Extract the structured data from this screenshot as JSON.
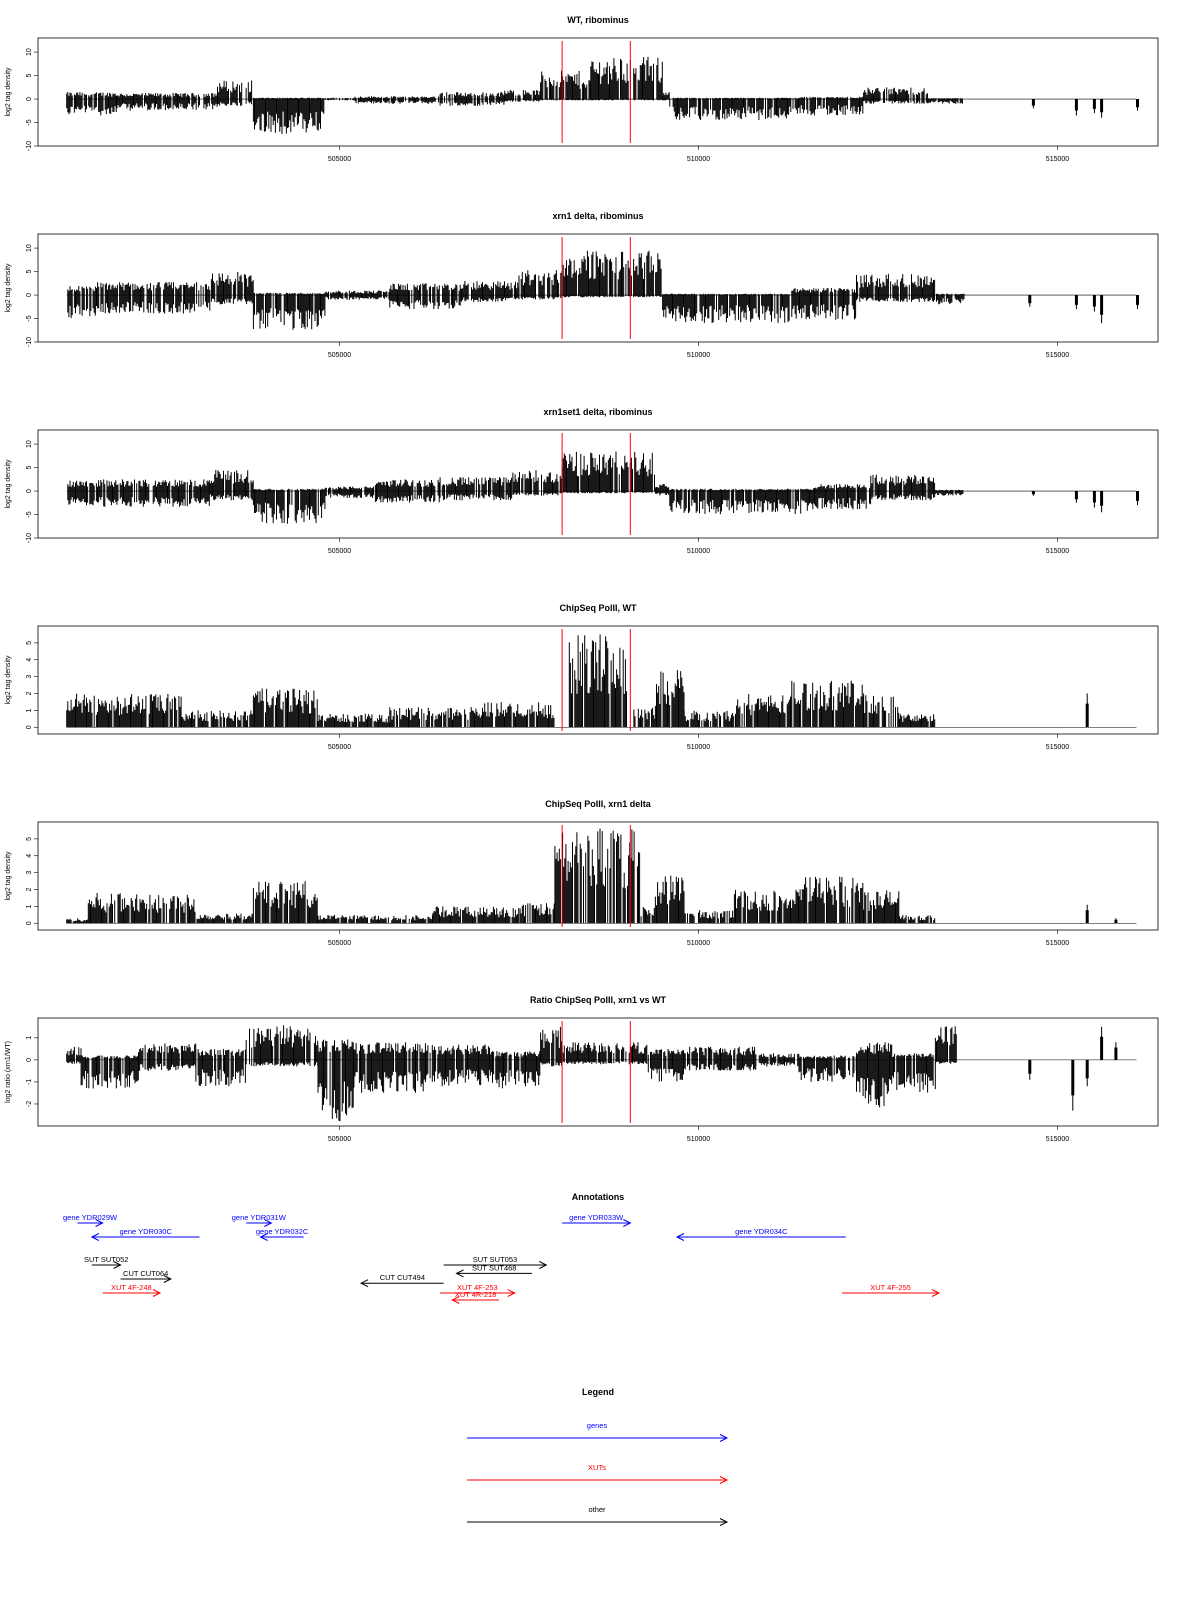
{
  "colors": {
    "gene": "#0000ff",
    "xut": "#ff0000",
    "other": "#000000",
    "marker": "#ff0000",
    "bars": "#000000"
  },
  "chart_data": [
    {
      "type": "bar",
      "title": "WT, ribominus",
      "ylabel": "log2 tag density",
      "xlim": [
        500800,
        516400
      ],
      "ylim": [
        -10,
        13
      ],
      "yticks": [
        "10",
        "5",
        "0",
        "-5",
        "-10"
      ],
      "xticks": [
        {
          "value": 505000,
          "label": "505000"
        },
        {
          "value": 510000,
          "label": "510000"
        },
        {
          "value": 515000,
          "label": "515000"
        }
      ],
      "markers": [
        508100,
        509050
      ],
      "segments": [
        [
          501200,
          501900,
          -3.5,
          1.5
        ],
        [
          501900,
          503300,
          -2.5,
          1.3
        ],
        [
          503300,
          503800,
          -1.5,
          4.0
        ],
        [
          503800,
          504800,
          -7.5,
          0.3
        ],
        [
          504800,
          505200,
          -0.3,
          0.3
        ],
        [
          505200,
          506400,
          -1.0,
          0.6
        ],
        [
          506400,
          507300,
          -1.5,
          1.5
        ],
        [
          507300,
          507800,
          -0.6,
          2.0
        ],
        [
          507800,
          508500,
          -0.3,
          6.0
        ],
        [
          508500,
          509500,
          -0.3,
          9.0
        ],
        [
          509500,
          509600,
          -0.3,
          2.0
        ],
        [
          509600,
          511400,
          -4.5,
          0.3
        ],
        [
          511400,
          512300,
          -3.5,
          0.5
        ],
        [
          512300,
          513200,
          -1.0,
          2.5
        ],
        [
          513200,
          513700,
          -1.0,
          0.2
        ]
      ],
      "spikes": [
        [
          514650,
          -2.0
        ],
        [
          515250,
          -3.5
        ],
        [
          515500,
          -3.0
        ],
        [
          515600,
          -4.0
        ],
        [
          516100,
          -2.5
        ]
      ]
    },
    {
      "type": "bar",
      "title": "xrn1 delta, ribominus",
      "ylabel": "log2 tag density",
      "xlim": [
        500800,
        516400
      ],
      "ylim": [
        -10,
        13
      ],
      "yticks": [
        "10",
        "5",
        "0",
        "-5",
        "-10"
      ],
      "xticks": [
        {
          "value": 505000,
          "label": "505000"
        },
        {
          "value": 510000,
          "label": "510000"
        },
        {
          "value": 515000,
          "label": "515000"
        }
      ],
      "markers": [
        508100,
        509050
      ],
      "segments": [
        [
          501200,
          501600,
          -5.0,
          2.0
        ],
        [
          501600,
          503200,
          -4.0,
          2.8
        ],
        [
          503200,
          503800,
          -2.0,
          5.0
        ],
        [
          503800,
          504800,
          -7.5,
          0.5
        ],
        [
          504800,
          505700,
          -1.0,
          1.0
        ],
        [
          505700,
          506700,
          -3.0,
          2.5
        ],
        [
          506700,
          507500,
          -1.5,
          3.0
        ],
        [
          507500,
          508100,
          -1.0,
          5.5
        ],
        [
          508100,
          509500,
          -0.5,
          9.5
        ],
        [
          509500,
          511300,
          -6.0,
          0.3
        ],
        [
          511300,
          512200,
          -5.5,
          1.5
        ],
        [
          512200,
          513300,
          -1.5,
          4.5
        ],
        [
          513300,
          513700,
          -2.0,
          0.3
        ]
      ],
      "spikes": [
        [
          514600,
          -2.5
        ],
        [
          515250,
          -3.0
        ],
        [
          515500,
          -3.5
        ],
        [
          515600,
          -6.0
        ],
        [
          516100,
          -3.0
        ]
      ]
    },
    {
      "type": "bar",
      "title": "xrn1set1 delta, ribominus",
      "ylabel": "log2 tag density",
      "xlim": [
        500800,
        516400
      ],
      "ylim": [
        -10,
        13
      ],
      "yticks": [
        "10",
        "5",
        "0",
        "-5",
        "-10"
      ],
      "xticks": [
        {
          "value": 505000,
          "label": "505000"
        },
        {
          "value": 510000,
          "label": "510000"
        },
        {
          "value": 515000,
          "label": "515000"
        }
      ],
      "markers": [
        508100,
        509050
      ],
      "segments": [
        [
          501200,
          501700,
          -3.5,
          2.5
        ],
        [
          501700,
          503200,
          -3.5,
          2.5
        ],
        [
          503200,
          503800,
          -2.0,
          4.5
        ],
        [
          503800,
          504800,
          -7.0,
          0.5
        ],
        [
          504800,
          505500,
          -1.5,
          1.0
        ],
        [
          505500,
          506400,
          -2.5,
          2.5
        ],
        [
          506400,
          507400,
          -2.0,
          3.0
        ],
        [
          507400,
          508100,
          -1.0,
          4.5
        ],
        [
          508100,
          509400,
          -0.5,
          8.5
        ],
        [
          509400,
          509600,
          -1.0,
          2.0
        ],
        [
          509600,
          511600,
          -5.0,
          0.5
        ],
        [
          511600,
          512400,
          -4.0,
          1.5
        ],
        [
          512400,
          513300,
          -2.0,
          3.5
        ],
        [
          513300,
          513700,
          -1.0,
          0.3
        ]
      ],
      "spikes": [
        [
          514650,
          -1.0
        ],
        [
          515250,
          -2.5
        ],
        [
          515500,
          -3.5
        ],
        [
          515600,
          -4.5
        ],
        [
          516100,
          -3.0
        ]
      ]
    },
    {
      "type": "bar",
      "title": "ChipSeq PolII, WT",
      "ylabel": "log2 tag density",
      "xlim": [
        500800,
        516400
      ],
      "ylim": [
        -0.4,
        6.0
      ],
      "yticks": [
        "5",
        "4",
        "3",
        "2",
        "1",
        "0"
      ],
      "xticks": [
        {
          "value": 505000,
          "label": "505000"
        },
        {
          "value": 510000,
          "label": "510000"
        },
        {
          "value": 515000,
          "label": "515000"
        }
      ],
      "markers": [
        508100,
        509050
      ],
      "segments": [
        [
          501200,
          502800,
          0,
          2.0
        ],
        [
          502800,
          503800,
          0,
          1.0
        ],
        [
          503800,
          504700,
          0,
          2.3
        ],
        [
          504700,
          505700,
          0,
          0.8
        ],
        [
          505700,
          506900,
          0,
          1.2
        ],
        [
          506900,
          508000,
          0,
          1.5
        ],
        [
          508200,
          509000,
          0,
          5.5
        ],
        [
          509100,
          509400,
          0,
          1.2
        ],
        [
          509400,
          509800,
          0,
          3.5
        ],
        [
          509800,
          510500,
          0,
          1.0
        ],
        [
          510500,
          511300,
          0,
          2.0
        ],
        [
          511300,
          512300,
          0,
          2.8
        ],
        [
          512300,
          512800,
          0,
          2.0
        ],
        [
          512800,
          513300,
          0,
          0.8
        ]
      ],
      "spikes": [
        [
          515400,
          2.0
        ]
      ]
    },
    {
      "type": "bar",
      "title": "ChipSeq PolII, xrn1 delta",
      "ylabel": "log2 tag density",
      "xlim": [
        500800,
        516400
      ],
      "ylim": [
        -0.4,
        6.0
      ],
      "yticks": [
        "5",
        "4",
        "3",
        "2",
        "1",
        "0"
      ],
      "xticks": [
        {
          "value": 505000,
          "label": "505000"
        },
        {
          "value": 510000,
          "label": "510000"
        },
        {
          "value": 515000,
          "label": "515000"
        }
      ],
      "markers": [
        508100,
        509050
      ],
      "segments": [
        [
          501200,
          501500,
          0,
          0.3
        ],
        [
          501500,
          503000,
          0,
          1.8
        ],
        [
          503000,
          503800,
          0,
          0.6
        ],
        [
          503800,
          504700,
          0,
          2.5
        ],
        [
          504700,
          506300,
          0,
          0.5
        ],
        [
          506300,
          507500,
          0,
          1.0
        ],
        [
          507500,
          508000,
          0,
          1.2
        ],
        [
          508000,
          509200,
          0,
          5.8
        ],
        [
          509200,
          509400,
          0,
          1.0
        ],
        [
          509400,
          509800,
          0,
          3.0
        ],
        [
          509800,
          510500,
          0,
          0.8
        ],
        [
          510500,
          511400,
          0,
          2.0
        ],
        [
          511400,
          512300,
          0,
          2.8
        ],
        [
          512300,
          512800,
          0,
          2.0
        ],
        [
          512800,
          513300,
          0,
          0.5
        ]
      ],
      "spikes": [
        [
          515400,
          1.1
        ],
        [
          515800,
          0.3
        ]
      ]
    },
    {
      "type": "bar",
      "title": "Ratio ChipSeq PolII, xrn1 vs WT",
      "ylabel": "log2 ratio (xrn1/WT)",
      "xlim": [
        500800,
        516400
      ],
      "ylim": [
        -3.0,
        1.9
      ],
      "yticks": [
        "1",
        "0",
        "-1",
        "-2"
      ],
      "xticks": [
        {
          "value": 505000,
          "label": "505000"
        },
        {
          "value": 510000,
          "label": "510000"
        },
        {
          "value": 515000,
          "label": "515000"
        }
      ],
      "markers": [
        508100,
        509050
      ],
      "segments": [
        [
          501200,
          501400,
          -0.2,
          0.6
        ],
        [
          501400,
          502200,
          -1.3,
          0.2
        ],
        [
          502200,
          503000,
          -0.5,
          0.8
        ],
        [
          503000,
          503700,
          -1.2,
          0.5
        ],
        [
          503700,
          504700,
          -0.3,
          1.6
        ],
        [
          504700,
          505200,
          -2.8,
          1.0
        ],
        [
          505200,
          506200,
          -1.5,
          0.8
        ],
        [
          506200,
          507100,
          -1.2,
          0.7
        ],
        [
          507100,
          507800,
          -1.3,
          0.4
        ],
        [
          507800,
          508100,
          -0.3,
          1.5
        ],
        [
          508100,
          509300,
          -0.2,
          0.8
        ],
        [
          509300,
          509800,
          -1.0,
          0.5
        ],
        [
          509800,
          510800,
          -0.5,
          0.6
        ],
        [
          510800,
          511400,
          -0.3,
          0.3
        ],
        [
          511400,
          512200,
          -1.0,
          0.2
        ],
        [
          512200,
          512700,
          -2.2,
          0.8
        ],
        [
          512700,
          513300,
          -1.5,
          0.3
        ],
        [
          513300,
          513600,
          -0.2,
          1.7
        ]
      ],
      "spikes": [
        [
          514600,
          -0.9
        ],
        [
          515200,
          -2.3
        ],
        [
          515400,
          -1.2
        ],
        [
          515600,
          1.5
        ],
        [
          515800,
          0.8
        ]
      ]
    }
  ],
  "annotations": {
    "title": "Annotations",
    "items": [
      {
        "label": "gene YDR029W",
        "start": 501350,
        "end": 501700,
        "row": 0,
        "color": "gene"
      },
      {
        "label": "gene YDR030C",
        "start": 503050,
        "end": 501550,
        "row": 1,
        "color": "gene"
      },
      {
        "label": "gene YDR031W",
        "start": 503700,
        "end": 504050,
        "row": 0,
        "color": "gene"
      },
      {
        "label": "gene YDR032C",
        "start": 504500,
        "end": 503900,
        "row": 1,
        "color": "gene"
      },
      {
        "label": "gene YDR033W",
        "start": 508100,
        "end": 509050,
        "row": 0,
        "color": "gene"
      },
      {
        "label": "gene YDR034C",
        "start": 512050,
        "end": 509700,
        "row": 1,
        "color": "gene"
      },
      {
        "label": "SUT SUT052",
        "start": 501550,
        "end": 501950,
        "row": 3,
        "color": "other"
      },
      {
        "label": "CUT CUT064",
        "start": 501950,
        "end": 502650,
        "row": 4,
        "color": "other"
      },
      {
        "label": "XUT 4F-248",
        "start": 501700,
        "end": 502500,
        "row": 5,
        "color": "xut"
      },
      {
        "label": "CUT CUT494",
        "start": 506450,
        "end": 505300,
        "row": 4.3,
        "color": "other"
      },
      {
        "label": "SUT SUT053",
        "start": 506450,
        "end": 507880,
        "row": 3,
        "color": "other"
      },
      {
        "label": "SUT SUT468",
        "start": 507680,
        "end": 506630,
        "row": 3.6,
        "color": "other"
      },
      {
        "label": "XUT 4F-253",
        "start": 506400,
        "end": 507440,
        "row": 5,
        "color": "xut"
      },
      {
        "label": "XUT 4R-218",
        "start": 507220,
        "end": 506570,
        "row": 5.5,
        "color": "xut"
      },
      {
        "label": "XUT 4F-255",
        "start": 512000,
        "end": 513350,
        "row": 5,
        "color": "xut"
      }
    ]
  },
  "legend": {
    "title": "Legend",
    "items": [
      {
        "label": "genes",
        "color": "gene"
      },
      {
        "label": "XUTs",
        "color": "xut"
      },
      {
        "label": "other",
        "color": "other"
      }
    ]
  }
}
